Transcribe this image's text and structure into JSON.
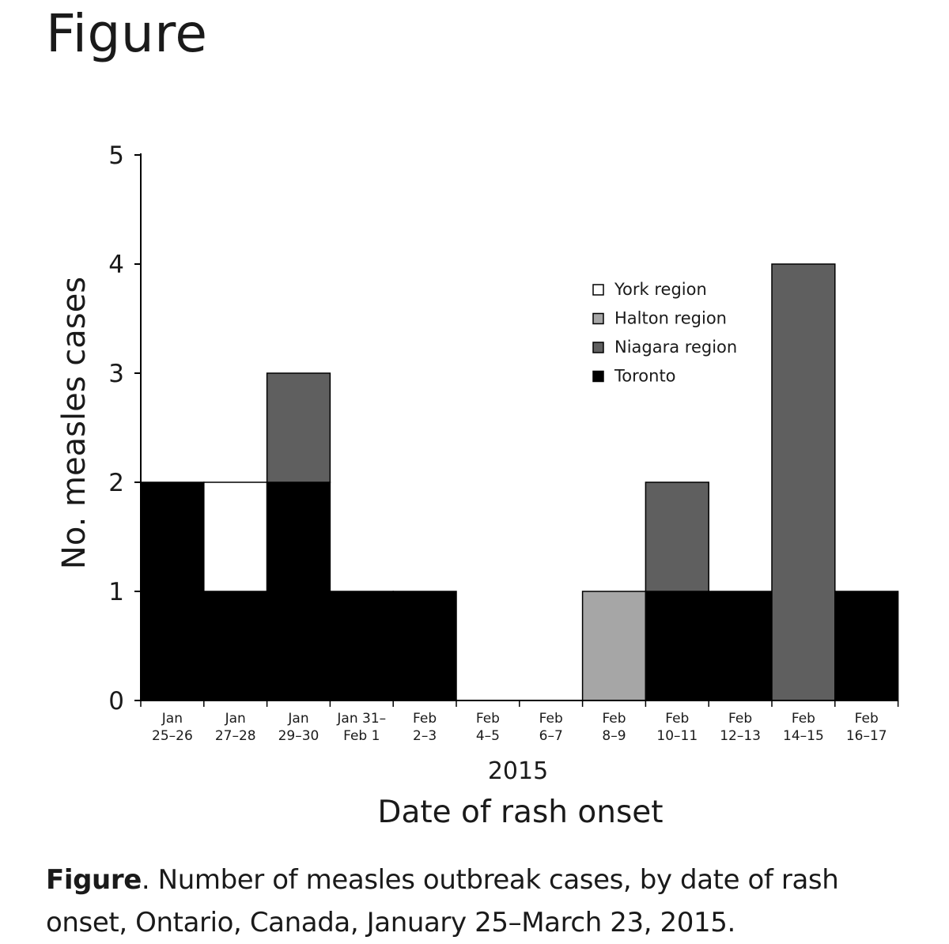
{
  "page": {
    "title": "Figure"
  },
  "caption": {
    "label": "Figure",
    "text": ". Number of measles outbreak cases, by date of rash onset, Ontario, Canada, January 25–March 23, 2015."
  },
  "chart_data": {
    "type": "bar",
    "stacked": true,
    "title": "",
    "ylabel": "No. measles cases",
    "xlabel": "Date of rash onset",
    "x_sublabel": "2015",
    "ylim": [
      0,
      5
    ],
    "yticks": [
      "0",
      "1",
      "2",
      "3",
      "4",
      "5"
    ],
    "categories": [
      [
        "Jan",
        "25–26"
      ],
      [
        "Jan",
        "27–28"
      ],
      [
        "Jan",
        "29–30"
      ],
      [
        "Jan 31–",
        "Feb 1"
      ],
      [
        "Feb",
        "2–3"
      ],
      [
        "Feb",
        "4–5"
      ],
      [
        "Feb",
        "6–7"
      ],
      [
        "Feb",
        "8–9"
      ],
      [
        "Feb",
        "10–11"
      ],
      [
        "Feb",
        "12–13"
      ],
      [
        "Feb",
        "14–15"
      ],
      [
        "Feb",
        "16–17"
      ]
    ],
    "series": [
      {
        "name": "Toronto",
        "color": "#000000",
        "values": [
          2,
          1,
          2,
          1,
          1,
          0,
          0,
          0,
          1,
          1,
          0,
          1
        ]
      },
      {
        "name": "Niagara region",
        "color": "#5f5f5f",
        "values": [
          0,
          0,
          1,
          0,
          0,
          0,
          0,
          0,
          1,
          0,
          4,
          0
        ]
      },
      {
        "name": "Halton region",
        "color": "#a6a6a6",
        "values": [
          0,
          0,
          0,
          0,
          0,
          0,
          0,
          1,
          0,
          0,
          0,
          0
        ]
      },
      {
        "name": "York region",
        "color": "#ffffff",
        "values": [
          0,
          1,
          0,
          0,
          0,
          0,
          0,
          0,
          0,
          0,
          0,
          0
        ]
      }
    ],
    "legend": {
      "position": "top-right",
      "order": [
        "York region",
        "Halton region",
        "Niagara region",
        "Toronto"
      ]
    }
  }
}
